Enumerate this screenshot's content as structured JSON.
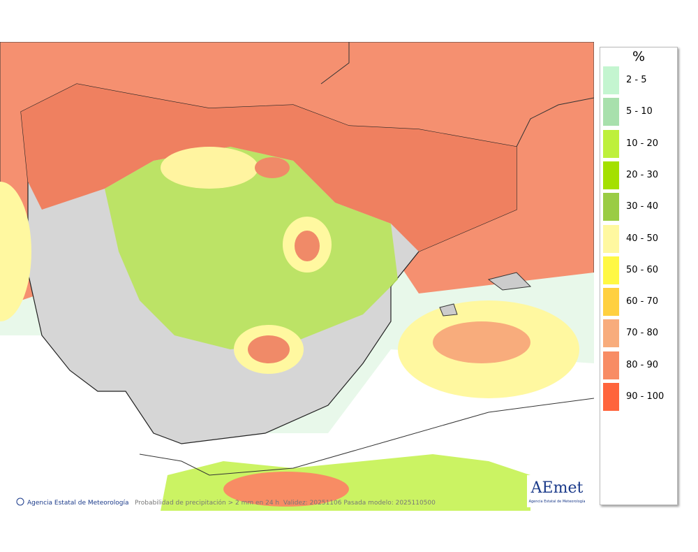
{
  "legend": {
    "title": "%",
    "items": [
      {
        "label": "2 - 5",
        "color": "#c4f5d0"
      },
      {
        "label": "5 - 10",
        "color": "#a8e0ac"
      },
      {
        "label": "10 - 20",
        "color": "#bef03c"
      },
      {
        "label": "20 - 30",
        "color": "#a4e000"
      },
      {
        "label": "30 - 40",
        "color": "#9acc44"
      },
      {
        "label": "40 - 50",
        "color": "#fff8a0"
      },
      {
        "label": "50 - 60",
        "color": "#fff844"
      },
      {
        "label": "60 - 70",
        "color": "#ffd040"
      },
      {
        "label": "70 - 80",
        "color": "#f8ac7c"
      },
      {
        "label": "80 - 90",
        "color": "#f88c64"
      },
      {
        "label": "90 - 100",
        "color": "#ff643c"
      }
    ]
  },
  "footer": {
    "credit": "Agencia Estatal de Meteorología",
    "caption": "Probabilidad de precipitación > 2 mm en 24 h  Validez: 20251106 Pasada modelo: 2025110500"
  },
  "logo": {
    "name": "AEmet",
    "subtitle": "Agencia Estatal de Meteorología"
  }
}
